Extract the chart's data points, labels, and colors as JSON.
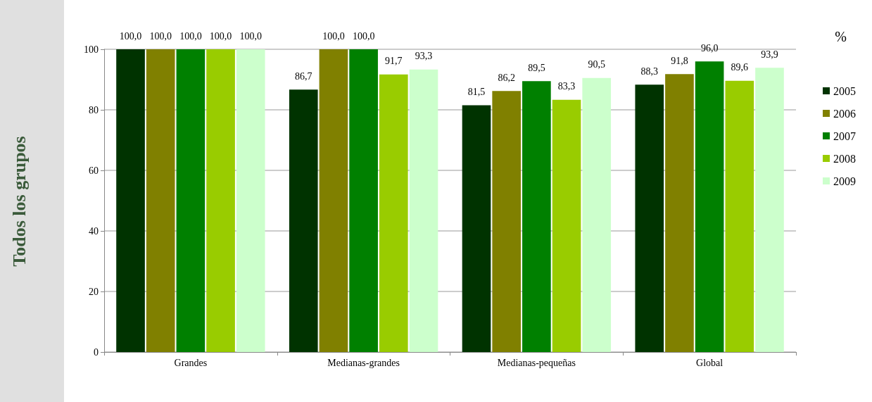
{
  "chart_data": {
    "type": "bar",
    "ylabel": "Todos los grupos",
    "categories": [
      "Grandes",
      "Medianas-grandes",
      "Medianas-pequeñas",
      "Global"
    ],
    "series": [
      {
        "name": "2005",
        "color": "#003300",
        "values": [
          100.0,
          86.7,
          81.5,
          88.3
        ],
        "value_labels": [
          "100,0",
          "86,7",
          "81,5",
          "88,3"
        ]
      },
      {
        "name": "2006",
        "color": "#808000",
        "values": [
          100.0,
          100.0,
          86.2,
          91.8
        ],
        "value_labels": [
          "100,0",
          "100,0",
          "86,2",
          "91,8"
        ]
      },
      {
        "name": "2007",
        "color": "#008000",
        "values": [
          100.0,
          100.0,
          89.5,
          96.0
        ],
        "value_labels": [
          "100,0",
          "100,0",
          "89,5",
          "96,0"
        ]
      },
      {
        "name": "2008",
        "color": "#99cc00",
        "values": [
          100.0,
          91.7,
          83.3,
          89.6
        ],
        "value_labels": [
          "100,0",
          "91,7",
          "83,3",
          "89,6"
        ]
      },
      {
        "name": "2009",
        "color": "#ccffcc",
        "values": [
          100.0,
          93.3,
          90.5,
          93.9
        ],
        "value_labels": [
          "100,0",
          "93,3",
          "90,5",
          "93,9"
        ]
      }
    ],
    "ylim": [
      0,
      100
    ],
    "yticks": [
      0,
      20,
      40,
      60,
      80,
      100
    ],
    "grid": "y",
    "legend": "right",
    "annotations": [
      "%"
    ]
  }
}
